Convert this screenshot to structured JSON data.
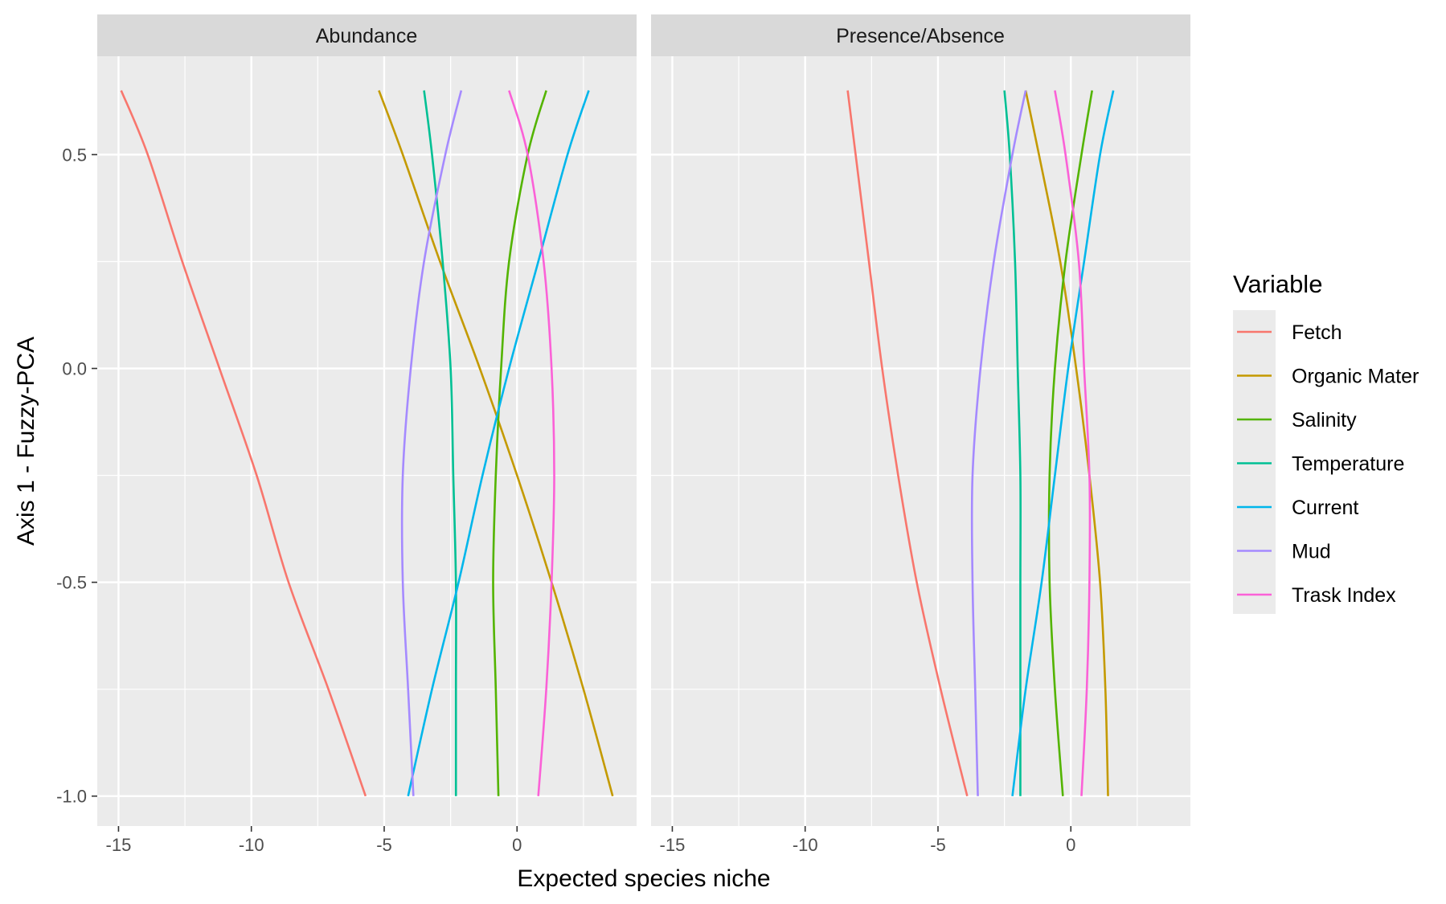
{
  "chart_data": {
    "type": "line",
    "xlabel": "Expected species niche",
    "ylabel": "Axis 1 - Fuzzy-PCA",
    "xlim": [
      -15.8,
      4.5
    ],
    "ylim": [
      -1.07,
      0.73
    ],
    "x_ticks": [
      -15,
      -10,
      -5,
      0
    ],
    "x_tick_labels": [
      "-15",
      "-10",
      "-5",
      "0"
    ],
    "y_ticks": [
      0.5,
      0.0,
      -0.5,
      -1.0
    ],
    "y_tick_labels": [
      "0.5",
      "0.0",
      "-0.5",
      "-1.0"
    ],
    "grid": true,
    "legend": {
      "title": "Variable",
      "placement": "right",
      "entries": [
        "Fetch",
        "Organic Mater",
        "Salinity",
        "Temperature",
        "Current",
        "Mud",
        "Trask Index"
      ]
    },
    "series_colors": {
      "Fetch": "#F8766D",
      "Organic Mater": "#C49A00",
      "Salinity": "#53B400",
      "Temperature": "#00C094",
      "Current": "#00B6EB",
      "Mud": "#A58AFF",
      "Trask Index": "#FB61D7"
    },
    "y_samples": [
      0.65,
      0.5,
      0.25,
      0.0,
      -0.25,
      -0.5,
      -0.75,
      -1.0
    ],
    "panels": [
      {
        "strip": "Abundance",
        "series": [
          {
            "name": "Fetch",
            "x": [
              -14.9,
              -13.9,
              -12.6,
              -11.2,
              -9.8,
              -8.6,
              -7.1,
              -5.7
            ]
          },
          {
            "name": "Organic Mater",
            "x": [
              -5.2,
              -4.3,
              -2.9,
              -1.4,
              0.0,
              1.3,
              2.5,
              3.6
            ]
          },
          {
            "name": "Salinity",
            "x": [
              1.1,
              0.4,
              -0.3,
              -0.6,
              -0.8,
              -0.9,
              -0.8,
              -0.7
            ]
          },
          {
            "name": "Temperature",
            "x": [
              -3.5,
              -3.2,
              -2.8,
              -2.5,
              -2.4,
              -2.3,
              -2.3,
              -2.3
            ]
          },
          {
            "name": "Current",
            "x": [
              2.7,
              1.9,
              0.8,
              -0.3,
              -1.3,
              -2.2,
              -3.2,
              -4.1
            ]
          },
          {
            "name": "Mud",
            "x": [
              -2.1,
              -2.7,
              -3.5,
              -4.0,
              -4.3,
              -4.3,
              -4.1,
              -3.9
            ]
          },
          {
            "name": "Trask Index",
            "x": [
              -0.3,
              0.4,
              1.0,
              1.3,
              1.4,
              1.3,
              1.1,
              0.8
            ]
          }
        ]
      },
      {
        "strip": "Presence/Absence",
        "series": [
          {
            "name": "Fetch",
            "x": [
              -8.4,
              -8.1,
              -7.6,
              -7.1,
              -6.5,
              -5.8,
              -4.9,
              -3.9
            ]
          },
          {
            "name": "Organic Mater",
            "x": [
              -1.7,
              -1.2,
              -0.4,
              0.2,
              0.7,
              1.1,
              1.3,
              1.4
            ]
          },
          {
            "name": "Salinity",
            "x": [
              0.8,
              0.4,
              -0.2,
              -0.6,
              -0.8,
              -0.8,
              -0.6,
              -0.3
            ]
          },
          {
            "name": "Temperature",
            "x": [
              -2.5,
              -2.3,
              -2.1,
              -2.0,
              -1.9,
              -1.9,
              -1.9,
              -1.9
            ]
          },
          {
            "name": "Current",
            "x": [
              1.6,
              1.1,
              0.5,
              -0.1,
              -0.6,
              -1.1,
              -1.7,
              -2.2
            ]
          },
          {
            "name": "Mud",
            "x": [
              -1.7,
              -2.2,
              -2.9,
              -3.4,
              -3.7,
              -3.7,
              -3.6,
              -3.5
            ]
          },
          {
            "name": "Trask Index",
            "x": [
              -0.6,
              -0.2,
              0.3,
              0.5,
              0.7,
              0.7,
              0.6,
              0.4
            ]
          }
        ]
      }
    ]
  }
}
